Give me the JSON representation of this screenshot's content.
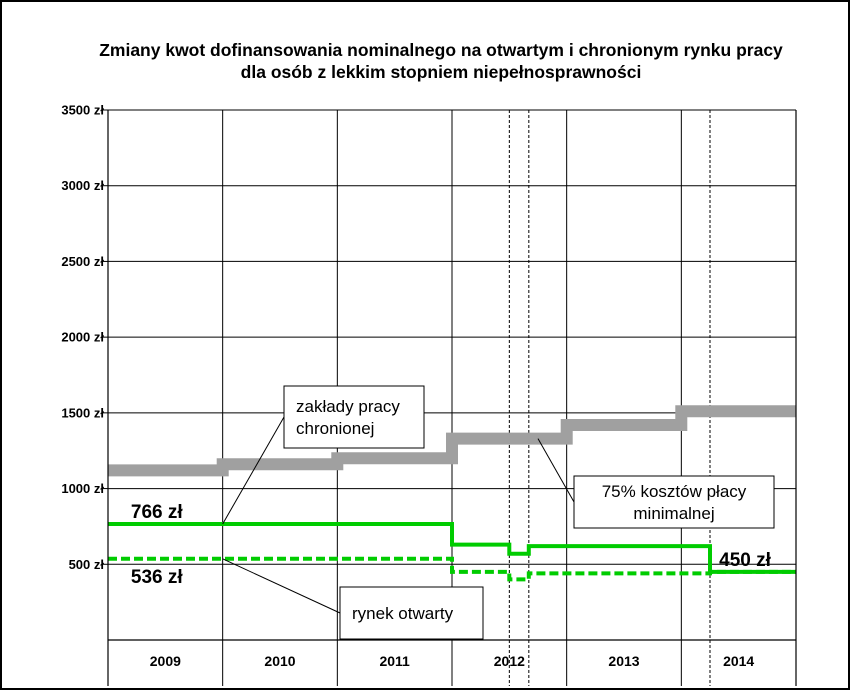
{
  "chart_data": {
    "type": "line",
    "title_lines": [
      "Zmiany kwot dofinansowania nominalnego na otwartym i chronionym rynku pracy",
      "dla osób z lekkim stopniem niepełnosprawności"
    ],
    "xlabel": "",
    "ylabel": "",
    "y_ticks": [
      "3500 zł",
      "3000 zł",
      "2500 zł",
      "2000 zł",
      "1500 zł",
      "1000 zł",
      "500 zł"
    ],
    "y_tick_values": [
      3500,
      3000,
      2500,
      2000,
      1500,
      1000,
      500
    ],
    "ylim": [
      0,
      3500
    ],
    "xlim": [
      2009.0,
      2015.0
    ],
    "categories": [
      "2009",
      "2010",
      "2011",
      "2012",
      "2013",
      "2014"
    ],
    "solid_vlines": [
      2010.0,
      2011.0,
      2012.0,
      2013.0,
      2014.0
    ],
    "dashed_vlines": [
      2012.5,
      2012.67,
      2014.25
    ],
    "series": [
      {
        "name": "75% kosztów płacy minimalnej",
        "color": "#a0a0a0",
        "style": "thick",
        "points": [
          [
            2009.0,
            1120
          ],
          [
            2010.0,
            1120
          ],
          [
            2010.0,
            1160
          ],
          [
            2011.0,
            1160
          ],
          [
            2011.0,
            1200
          ],
          [
            2012.0,
            1200
          ],
          [
            2012.0,
            1330
          ],
          [
            2013.0,
            1330
          ],
          [
            2013.0,
            1420
          ],
          [
            2014.0,
            1420
          ],
          [
            2014.0,
            1510
          ],
          [
            2015.0,
            1510
          ]
        ]
      },
      {
        "name": "zakłady pracy chronionej",
        "color": "#00cc00",
        "style": "solid",
        "points": [
          [
            2009.0,
            766
          ],
          [
            2012.0,
            766
          ],
          [
            2012.0,
            630
          ],
          [
            2012.5,
            630
          ],
          [
            2012.5,
            570
          ],
          [
            2012.67,
            570
          ],
          [
            2012.67,
            620
          ],
          [
            2014.25,
            620
          ],
          [
            2014.25,
            450
          ],
          [
            2015.0,
            450
          ]
        ]
      },
      {
        "name": "rynek otwarty",
        "color": "#00cc00",
        "style": "dashed",
        "points": [
          [
            2009.0,
            536
          ],
          [
            2012.0,
            536
          ],
          [
            2012.0,
            450
          ],
          [
            2012.5,
            450
          ],
          [
            2012.5,
            400
          ],
          [
            2012.67,
            400
          ],
          [
            2012.67,
            440
          ],
          [
            2014.25,
            440
          ],
          [
            2014.25,
            450
          ],
          [
            2015.0,
            450
          ]
        ]
      }
    ],
    "value_labels": [
      {
        "text": "766 zł",
        "x": 2009.2,
        "y": 766
      },
      {
        "text": "536 zł",
        "x": 2009.2,
        "y": 536
      },
      {
        "text": "450 zł",
        "x": 2014.33,
        "y": 450
      }
    ],
    "annotations": [
      {
        "lines": [
          "zakłady pracy",
          "chronionej"
        ],
        "target_x": 2010.0,
        "target_y": 766
      },
      {
        "lines": [
          "75% kosztów płacy",
          "minimalnej"
        ],
        "target_x": 2012.75,
        "target_y": 1330
      },
      {
        "lines": [
          "rynek otwarty"
        ],
        "target_x": 2010.0,
        "target_y": 536
      }
    ],
    "grid": true
  }
}
